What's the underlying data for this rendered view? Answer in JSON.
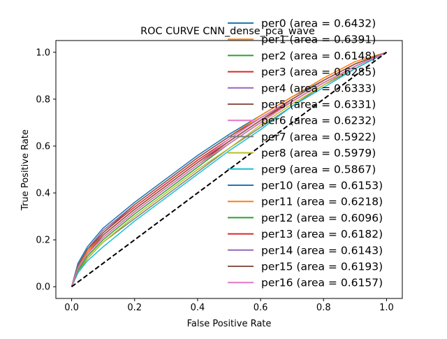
{
  "chart_data": {
    "type": "line",
    "title": "ROC CURVE CNN_dense_pca_wave",
    "xlabel": "False Positive Rate",
    "ylabel": "True Positive Rate",
    "xlim": [
      -0.05,
      1.05
    ],
    "ylim": [
      -0.05,
      1.05
    ],
    "xticks": [
      "0.0",
      "0.2",
      "0.4",
      "0.6",
      "0.8",
      "1.0"
    ],
    "yticks": [
      "0.0",
      "0.2",
      "0.4",
      "0.6",
      "0.8",
      "1.0"
    ],
    "grid": false,
    "legend_position": "top-right",
    "x": [
      0,
      0.02,
      0.05,
      0.1,
      0.2,
      0.3,
      0.4,
      0.5,
      0.6,
      0.7,
      0.8,
      0.9,
      1.0
    ],
    "series": [
      {
        "name": "per0 (area = 0.6432)",
        "color": "#1f77b4",
        "values": [
          0,
          0.1,
          0.17,
          0.25,
          0.36,
          0.46,
          0.56,
          0.65,
          0.73,
          0.81,
          0.88,
          0.95,
          1.0
        ]
      },
      {
        "name": "per1 (area = 0.6391)",
        "color": "#ff7f0e",
        "values": [
          0,
          0.09,
          0.16,
          0.24,
          0.35,
          0.45,
          0.55,
          0.64,
          0.73,
          0.81,
          0.89,
          0.96,
          1.0
        ]
      },
      {
        "name": "per2 (area = 0.6148)",
        "color": "#2ca02c",
        "values": [
          0,
          0.08,
          0.14,
          0.21,
          0.32,
          0.42,
          0.52,
          0.61,
          0.7,
          0.79,
          0.87,
          0.94,
          1.0
        ]
      },
      {
        "name": "per3 (area = 0.6285)",
        "color": "#d62728",
        "values": [
          0,
          0.09,
          0.15,
          0.23,
          0.34,
          0.44,
          0.54,
          0.63,
          0.72,
          0.8,
          0.88,
          0.95,
          1.0
        ]
      },
      {
        "name": "per4 (area = 0.6333)",
        "color": "#9467bd",
        "values": [
          0,
          0.09,
          0.16,
          0.24,
          0.35,
          0.45,
          0.55,
          0.64,
          0.72,
          0.8,
          0.88,
          0.95,
          1.0
        ]
      },
      {
        "name": "per5 (area = 0.6331)",
        "color": "#8c564b",
        "values": [
          0,
          0.09,
          0.16,
          0.23,
          0.35,
          0.45,
          0.55,
          0.64,
          0.72,
          0.8,
          0.88,
          0.95,
          1.0
        ]
      },
      {
        "name": "per6 (area = 0.6232)",
        "color": "#e377c2",
        "values": [
          0,
          0.08,
          0.15,
          0.22,
          0.33,
          0.43,
          0.53,
          0.63,
          0.72,
          0.8,
          0.88,
          0.95,
          1.0
        ]
      },
      {
        "name": "per7 (area = 0.5922)",
        "color": "#7f7f7f",
        "values": [
          0,
          0.06,
          0.12,
          0.19,
          0.29,
          0.39,
          0.49,
          0.59,
          0.68,
          0.77,
          0.86,
          0.93,
          1.0
        ]
      },
      {
        "name": "per8 (area = 0.5979)",
        "color": "#bcbd22",
        "values": [
          0,
          0.07,
          0.12,
          0.19,
          0.3,
          0.4,
          0.5,
          0.59,
          0.69,
          0.78,
          0.86,
          0.94,
          1.0
        ]
      },
      {
        "name": "per9 (area = 0.5867)",
        "color": "#17becf",
        "values": [
          0,
          0.06,
          0.11,
          0.17,
          0.28,
          0.38,
          0.48,
          0.58,
          0.67,
          0.77,
          0.85,
          0.93,
          1.0
        ]
      },
      {
        "name": "per10 (area = 0.6153)",
        "color": "#1f77b4",
        "values": [
          0,
          0.08,
          0.14,
          0.21,
          0.32,
          0.42,
          0.52,
          0.61,
          0.7,
          0.79,
          0.87,
          0.94,
          1.0
        ]
      },
      {
        "name": "per11 (area = 0.6218)",
        "color": "#ff7f0e",
        "values": [
          0,
          0.08,
          0.15,
          0.22,
          0.33,
          0.43,
          0.53,
          0.62,
          0.71,
          0.8,
          0.88,
          0.95,
          1.0
        ]
      },
      {
        "name": "per12 (area = 0.6096)",
        "color": "#2ca02c",
        "values": [
          0,
          0.07,
          0.13,
          0.2,
          0.31,
          0.41,
          0.51,
          0.61,
          0.7,
          0.79,
          0.87,
          0.94,
          1.0
        ]
      },
      {
        "name": "per13 (area = 0.6182)",
        "color": "#d62728",
        "values": [
          0,
          0.08,
          0.14,
          0.21,
          0.32,
          0.42,
          0.52,
          0.62,
          0.71,
          0.79,
          0.87,
          0.94,
          1.0
        ]
      },
      {
        "name": "per14 (area = 0.6143)",
        "color": "#9467bd",
        "values": [
          0,
          0.08,
          0.14,
          0.21,
          0.32,
          0.42,
          0.52,
          0.61,
          0.7,
          0.79,
          0.87,
          0.94,
          1.0
        ]
      },
      {
        "name": "per15 (area = 0.6193)",
        "color": "#8c564b",
        "values": [
          0,
          0.08,
          0.14,
          0.22,
          0.33,
          0.43,
          0.53,
          0.62,
          0.71,
          0.8,
          0.88,
          0.95,
          1.0
        ]
      },
      {
        "name": "per16 (area = 0.6157)",
        "color": "#e377c2",
        "values": [
          0,
          0.08,
          0.14,
          0.21,
          0.32,
          0.42,
          0.52,
          0.61,
          0.7,
          0.79,
          0.87,
          0.94,
          1.0
        ]
      }
    ],
    "reference_line": {
      "x": [
        0,
        1
      ],
      "y": [
        0,
        1
      ],
      "color": "#000000",
      "style": "dashed"
    }
  }
}
